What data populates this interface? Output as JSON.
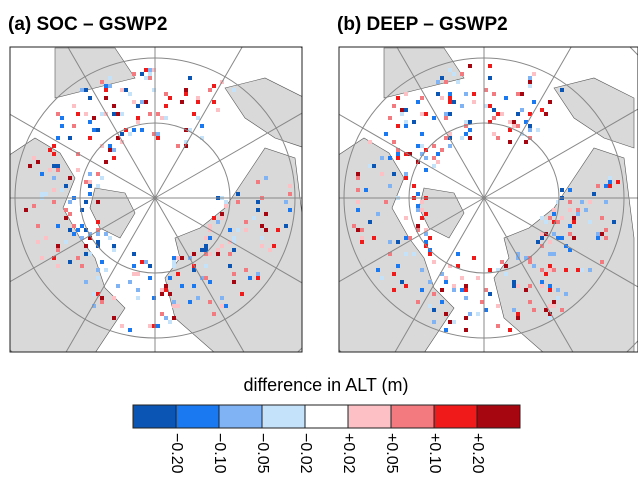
{
  "panels": [
    {
      "title": "(a) SOC – GSWP2"
    },
    {
      "title": "(b) DEEP – GSWP2"
    }
  ],
  "colorbar": {
    "label": "difference in ALT (m)",
    "colors": [
      "#0b55b4",
      "#1a79f0",
      "#7fb3f4",
      "#c4e3fa",
      "#ffffff",
      "#fdc0c4",
      "#f37b80",
      "#f11a1a",
      "#a6060f"
    ],
    "ticks": [
      "−0.20",
      "−0.10",
      "−0.05",
      "−0.02",
      "+0.02",
      "+0.05",
      "+0.10",
      "+0.20"
    ]
  }
}
